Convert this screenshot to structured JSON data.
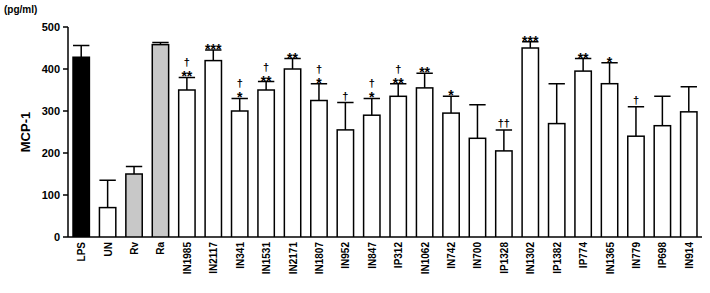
{
  "chart_data": {
    "type": "bar",
    "title": "MCP-1",
    "subtitle": "(pg/ml)",
    "categories": [
      "LPS",
      "UN",
      "Rv",
      "Ra",
      "IN1985",
      "IN2117",
      "IN341",
      "IN1531",
      "IN2171",
      "IN1807",
      "IN952",
      "IN847",
      "IP312",
      "IN1062",
      "IN742",
      "IN700",
      "IP1328",
      "IN1302",
      "IP1382",
      "IP774",
      "IN1365",
      "IN779",
      "IP698",
      "IN914"
    ],
    "values": [
      428,
      70,
      150,
      458,
      350,
      420,
      300,
      350,
      400,
      325,
      255,
      290,
      335,
      355,
      295,
      235,
      205,
      450,
      270,
      395,
      365,
      240,
      265,
      298
    ],
    "errors": [
      28,
      65,
      18,
      5,
      30,
      25,
      30,
      20,
      25,
      40,
      65,
      40,
      30,
      35,
      40,
      80,
      50,
      15,
      95,
      30,
      50,
      70,
      70,
      60
    ],
    "annotations": [
      [],
      [],
      [],
      [],
      [
        "†",
        "**"
      ],
      [
        "***"
      ],
      [
        "†",
        "*"
      ],
      [
        "†",
        "**"
      ],
      [
        "**"
      ],
      [
        "†",
        "*"
      ],
      [
        "†"
      ],
      [
        "†",
        "*"
      ],
      [
        "†",
        "**"
      ],
      [
        "**"
      ],
      [
        "*"
      ],
      [],
      [
        "††"
      ],
      [
        "***"
      ],
      [],
      [
        "**"
      ],
      [
        "*"
      ],
      [
        "†"
      ],
      [],
      []
    ],
    "colors": [
      "#000000",
      "#ffffff",
      "#c8c8c8",
      "#c8c8c8",
      "#ffffff",
      "#ffffff",
      "#ffffff",
      "#ffffff",
      "#ffffff",
      "#ffffff",
      "#ffffff",
      "#ffffff",
      "#ffffff",
      "#ffffff",
      "#ffffff",
      "#ffffff",
      "#ffffff",
      "#ffffff",
      "#ffffff",
      "#ffffff",
      "#ffffff",
      "#ffffff",
      "#ffffff",
      "#ffffff"
    ],
    "ylim": [
      0,
      500
    ],
    "yticks": [
      0,
      100,
      200,
      300,
      400,
      500
    ],
    "grid": false
  }
}
